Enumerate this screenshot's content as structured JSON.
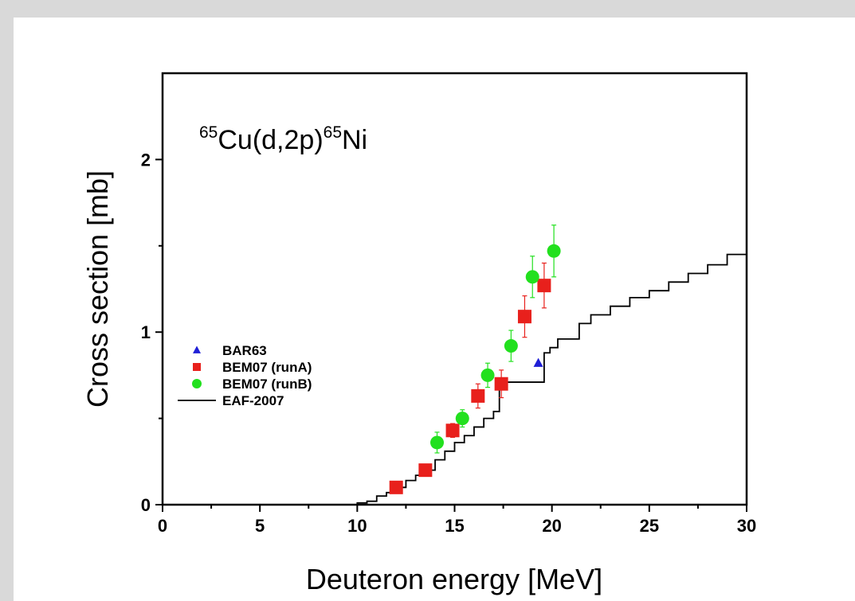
{
  "chart_data": {
    "type": "scatter",
    "annotation": {
      "mass_target": "65",
      "target": "Cu(d,2p)",
      "mass_product": "65",
      "product": "Ni"
    },
    "xlabel": "Deuteron energy [MeV]",
    "ylabel": "Cross section [mb]",
    "xlim": [
      0,
      30
    ],
    "ylim": [
      0,
      2.5
    ],
    "x_ticks": [
      0,
      5,
      10,
      15,
      20,
      25,
      30
    ],
    "y_ticks": [
      0,
      1,
      2
    ],
    "grid": false,
    "legend_position": "left-middle",
    "series": [
      {
        "name": "BAR63",
        "marker": "triangle",
        "color": "#1f1fd6",
        "points": [
          {
            "x": 19.3,
            "y": 0.82
          }
        ]
      },
      {
        "name": "BEM07 (runA)",
        "marker": "square",
        "color": "#e8201c",
        "points": [
          {
            "x": 12.0,
            "y": 0.1,
            "xerr": 0.3,
            "yerr": 0.02
          },
          {
            "x": 13.5,
            "y": 0.2,
            "xerr": 0.3,
            "yerr": 0.03
          },
          {
            "x": 14.9,
            "y": 0.43,
            "xerr": 0.3,
            "yerr": 0.04
          },
          {
            "x": 16.2,
            "y": 0.63,
            "xerr": 0.3,
            "yerr": 0.07
          },
          {
            "x": 17.4,
            "y": 0.7,
            "xerr": 0.3,
            "yerr": 0.08
          },
          {
            "x": 18.6,
            "y": 1.09,
            "xerr": 0.3,
            "yerr": 0.12
          },
          {
            "x": 19.6,
            "y": 1.27,
            "xerr": 0.3,
            "yerr": 0.13
          }
        ]
      },
      {
        "name": "BEM07 (runB)",
        "marker": "circle",
        "color": "#22e01e",
        "points": [
          {
            "x": 14.1,
            "y": 0.36,
            "xerr": 0.3,
            "yerr": 0.06
          },
          {
            "x": 15.4,
            "y": 0.5,
            "xerr": 0.3,
            "yerr": 0.05
          },
          {
            "x": 16.7,
            "y": 0.75,
            "xerr": 0.3,
            "yerr": 0.07
          },
          {
            "x": 17.9,
            "y": 0.92,
            "xerr": 0.3,
            "yerr": 0.09
          },
          {
            "x": 19.0,
            "y": 1.32,
            "xerr": 0.3,
            "yerr": 0.12
          },
          {
            "x": 20.1,
            "y": 1.47,
            "xerr": 0.3,
            "yerr": 0.15
          }
        ]
      },
      {
        "name": "EAF-2007",
        "type": "step",
        "color": "#000000",
        "points": [
          {
            "x": 9.5,
            "y": 0.0
          },
          {
            "x": 10.0,
            "y": 0.01
          },
          {
            "x": 10.5,
            "y": 0.02
          },
          {
            "x": 11.0,
            "y": 0.05
          },
          {
            "x": 11.5,
            "y": 0.07
          },
          {
            "x": 12.0,
            "y": 0.1
          },
          {
            "x": 12.5,
            "y": 0.14
          },
          {
            "x": 13.0,
            "y": 0.17
          },
          {
            "x": 13.5,
            "y": 0.2
          },
          {
            "x": 14.0,
            "y": 0.26
          },
          {
            "x": 14.5,
            "y": 0.31
          },
          {
            "x": 15.0,
            "y": 0.36
          },
          {
            "x": 15.5,
            "y": 0.4
          },
          {
            "x": 16.0,
            "y": 0.45
          },
          {
            "x": 16.5,
            "y": 0.5
          },
          {
            "x": 17.0,
            "y": 0.54
          },
          {
            "x": 17.3,
            "y": 0.71
          },
          {
            "x": 19.6,
            "y": 0.88
          },
          {
            "x": 19.9,
            "y": 0.91
          },
          {
            "x": 20.3,
            "y": 0.96
          },
          {
            "x": 21.4,
            "y": 1.05
          },
          {
            "x": 22.0,
            "y": 1.1
          },
          {
            "x": 23.0,
            "y": 1.15
          },
          {
            "x": 24.0,
            "y": 1.2
          },
          {
            "x": 25.0,
            "y": 1.24
          },
          {
            "x": 26.0,
            "y": 1.29
          },
          {
            "x": 27.0,
            "y": 1.34
          },
          {
            "x": 28.0,
            "y": 1.39
          },
          {
            "x": 29.0,
            "y": 1.45
          },
          {
            "x": 30.0,
            "y": 1.45
          }
        ]
      }
    ]
  }
}
